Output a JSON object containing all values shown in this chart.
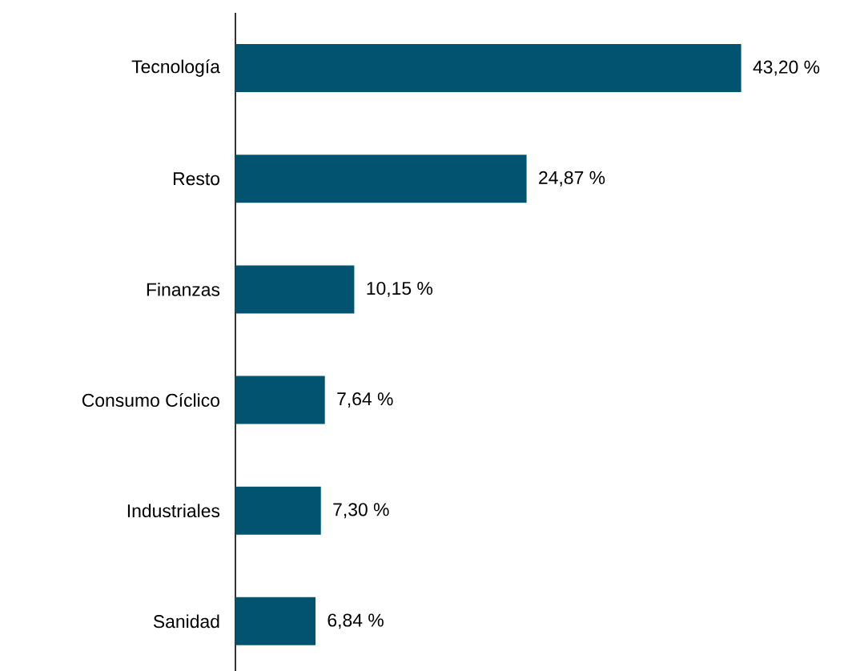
{
  "chart_data": {
    "type": "bar",
    "orientation": "horizontal",
    "color": "#02536f",
    "categories": [
      "Tecnología",
      "Resto",
      "Finanzas",
      "Consumo Cíclico",
      "Industriales",
      "Sanidad"
    ],
    "values": [
      43.2,
      24.87,
      10.15,
      7.64,
      7.3,
      6.84
    ],
    "value_labels": [
      "43,20 %",
      "24,87 %",
      "10,15 %",
      "7,64 %",
      "7,30 %",
      "6,84 %"
    ]
  }
}
